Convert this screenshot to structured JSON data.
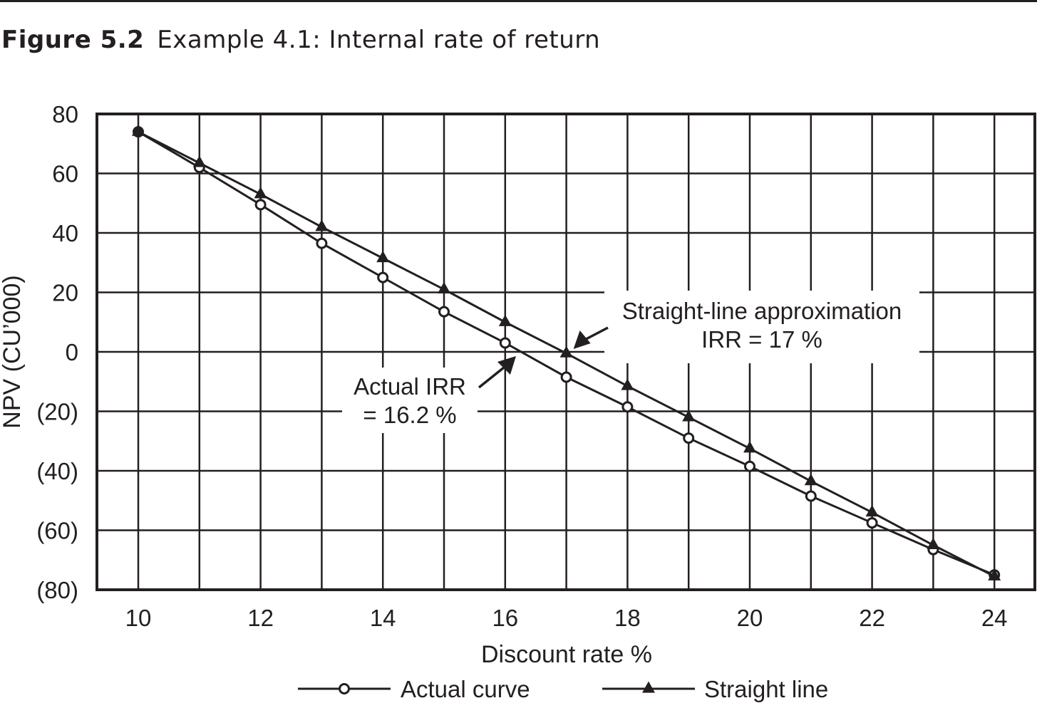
{
  "caption": {
    "figure_number": "Figure 5.2",
    "title": "Example 4.1: Internal rate of return"
  },
  "chart_data": {
    "type": "line",
    "xlabel": "Discount rate %",
    "ylabel": "NPV (CU’000)",
    "xlim": [
      9.3,
      24.7
    ],
    "ylim": [
      -80,
      80
    ],
    "x_ticks": [
      10,
      12,
      14,
      16,
      18,
      20,
      22,
      24
    ],
    "y_ticks": [
      80,
      60,
      40,
      20,
      0,
      -20,
      -40,
      -60,
      -80
    ],
    "y_tick_labels": [
      "80",
      "60",
      "40",
      "20",
      "0",
      "(20)",
      "(40)",
      "(60)",
      "(80)"
    ],
    "grid": true,
    "legend_position": "bottom",
    "x": [
      10,
      11,
      12,
      13,
      14,
      15,
      16,
      17,
      18,
      19,
      20,
      21,
      22,
      23,
      24
    ],
    "series": [
      {
        "name": "Actual curve",
        "marker": "circle",
        "values": [
          74,
          62,
          49.5,
          36.5,
          25,
          13.5,
          3,
          -8.5,
          -18.5,
          -29,
          -38.5,
          -48.5,
          -57.5,
          -66.5,
          -75
        ]
      },
      {
        "name": "Straight line",
        "marker": "triangle",
        "values": [
          74,
          63.5,
          53,
          42,
          31.5,
          21,
          10,
          -0.5,
          -11.5,
          -22,
          -32.5,
          -43.5,
          -54,
          -65,
          -75.5
        ]
      }
    ],
    "annotations": [
      {
        "id": "straight",
        "lines": [
          "Straight-line approximation",
          "IRR = 17 %"
        ],
        "target": [
          17,
          0
        ]
      },
      {
        "id": "actual",
        "lines": [
          "Actual IRR",
          "= 16.2 %"
        ],
        "target": [
          16.2,
          0
        ]
      }
    ]
  }
}
